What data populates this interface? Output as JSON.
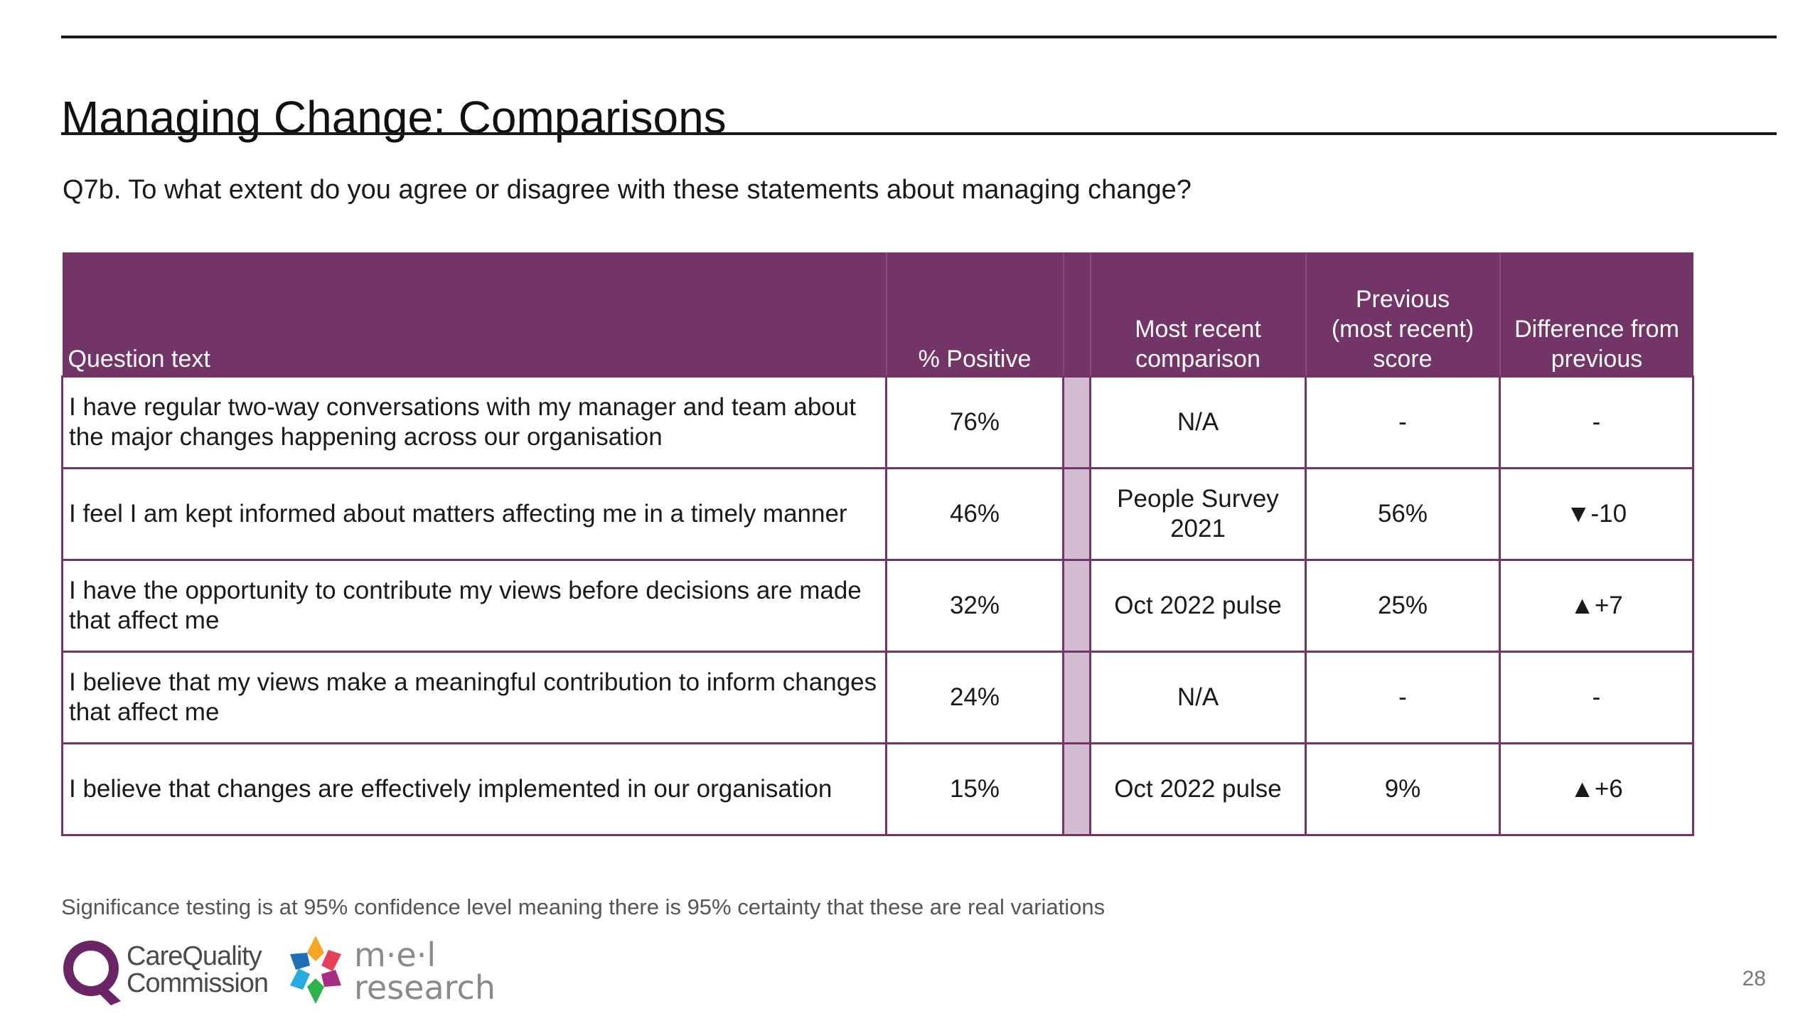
{
  "slide": {
    "title": "Managing Change: Comparisons",
    "question": "Q7b. To what extent do you agree or disagree with these statements about managing change?",
    "footnote": "Significance testing is at 95% confidence level meaning there is 95% certainty that these are real variations",
    "page_number": "28"
  },
  "table": {
    "headers": {
      "question_text": "Question text",
      "positive": "% Positive",
      "comparison_line1": "Most recent",
      "comparison_line2": "comparison",
      "previous_line1": "Previous",
      "previous_line2": "(most recent)",
      "previous_line3": "score",
      "difference_line1": "Difference from",
      "difference_line2": "previous"
    },
    "rows": [
      {
        "question": "I have regular two-way conversations with my manager and team about the major changes happening across our organisation",
        "positive": "76%",
        "comparison": "N/A",
        "previous": "-",
        "difference": "-"
      },
      {
        "question": "I feel I am kept informed about matters affecting me in a timely manner",
        "positive": "46%",
        "comparison": "People Survey 2021",
        "previous": "56%",
        "difference": "▼-10"
      },
      {
        "question": "I have the opportunity to contribute my views before decisions are made that affect me",
        "positive": "32%",
        "comparison": "Oct 2022 pulse",
        "previous": "25%",
        "difference": "▲+7"
      },
      {
        "question": "I believe that my views make a meaningful contribution to inform changes that affect me",
        "positive": "24%",
        "comparison": "N/A",
        "previous": "-",
        "difference": "-"
      },
      {
        "question": "I believe that changes are effectively implemented in our organisation",
        "positive": "15%",
        "comparison": "Oct 2022 pulse",
        "previous": "9%",
        "difference": "▲+6"
      }
    ]
  },
  "logos": {
    "cqc": {
      "line1": "CareQuality",
      "line2": "Commission"
    },
    "mel": {
      "line1": "m·e·l",
      "line2": "research"
    }
  },
  "colors": {
    "header_purple": "#733467",
    "gap_column": "#d2bcd2",
    "cqc_purple": "#6b2466"
  }
}
